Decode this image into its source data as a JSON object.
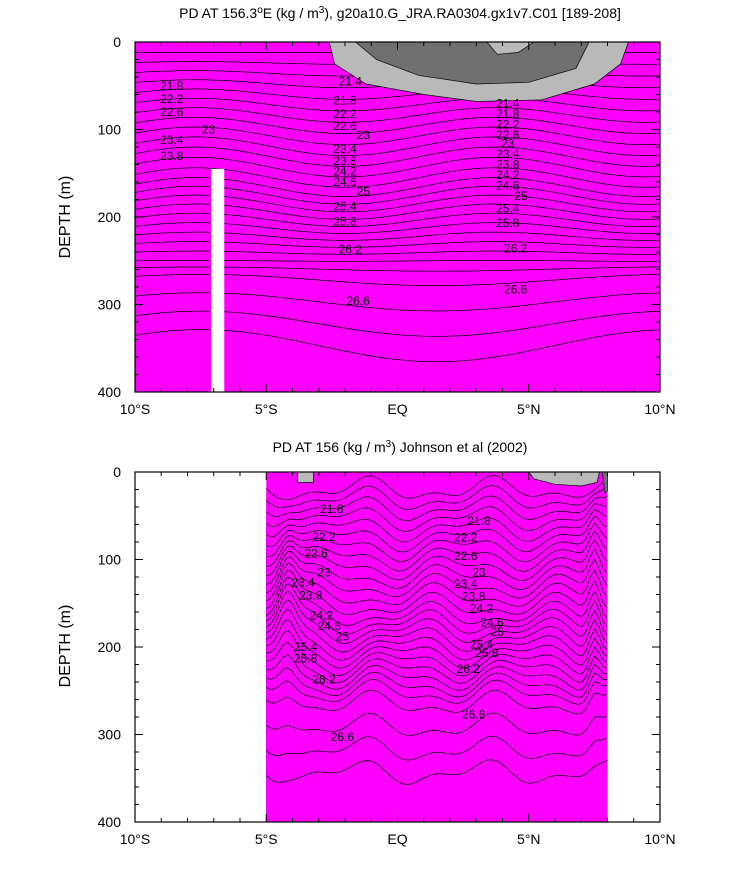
{
  "chart_data": [
    {
      "type": "contour",
      "title": "PD AT 156.3",
      "title_sup": "o",
      "title_rest": "E (kg / m",
      "title_sup2": "3",
      "title_tail": "), g20a10.G_JRA.RA0304.gx1v7.C01 [189-208]",
      "ylabel": "DEPTH (m)",
      "xlabel": "",
      "xlim": [
        -10,
        10
      ],
      "ylim": [
        400,
        0
      ],
      "x_ticks": [
        -10,
        -5,
        0,
        5,
        10
      ],
      "x_tick_labels": [
        "10°S",
        "5°S",
        "EQ",
        "5°N",
        "10°N"
      ],
      "y_ticks": [
        0,
        100,
        200,
        300,
        400
      ],
      "y_tick_labels": [
        "0",
        "100",
        "200",
        "300",
        "400"
      ],
      "levels": [
        21.4,
        21.6,
        21.8,
        22,
        22.2,
        22.4,
        22.6,
        22.8,
        23,
        23.2,
        23.4,
        23.6,
        23.8,
        24,
        24.2,
        24.4,
        24.6,
        24.8,
        25,
        25.2,
        25.4,
        25.6,
        25.8,
        26,
        26.2,
        26.4,
        26.6,
        26.8
      ],
      "contour_labels": [
        {
          "text": "21.8",
          "lat": -8.6,
          "depth": 50
        },
        {
          "text": "22.2",
          "lat": -8.6,
          "depth": 65
        },
        {
          "text": "22.6",
          "lat": -8.6,
          "depth": 80
        },
        {
          "text": "23",
          "lat": -7.2,
          "depth": 100
        },
        {
          "text": "23.4",
          "lat": -8.6,
          "depth": 112
        },
        {
          "text": "23.8",
          "lat": -8.6,
          "depth": 130
        },
        {
          "text": "21.4",
          "lat": -1.8,
          "depth": 45
        },
        {
          "text": "21.8",
          "lat": -2,
          "depth": 67
        },
        {
          "text": "22.2",
          "lat": -2,
          "depth": 82
        },
        {
          "text": "22.6",
          "lat": -2,
          "depth": 96
        },
        {
          "text": "23",
          "lat": -1.3,
          "depth": 106
        },
        {
          "text": "23.4",
          "lat": -2,
          "depth": 122
        },
        {
          "text": "23.8",
          "lat": -2,
          "depth": 136
        },
        {
          "text": "24.2",
          "lat": -2,
          "depth": 148
        },
        {
          "text": "24.6",
          "lat": -2,
          "depth": 160
        },
        {
          "text": "25",
          "lat": -1.3,
          "depth": 171
        },
        {
          "text": "25.4",
          "lat": -2,
          "depth": 188
        },
        {
          "text": "25.8",
          "lat": -2,
          "depth": 205
        },
        {
          "text": "26.2",
          "lat": -1.8,
          "depth": 237
        },
        {
          "text": "26.6",
          "lat": -1.5,
          "depth": 296
        },
        {
          "text": "21.4",
          "lat": 4.2,
          "depth": 70
        },
        {
          "text": "21.8",
          "lat": 4.2,
          "depth": 82
        },
        {
          "text": "22.2",
          "lat": 4.2,
          "depth": 94
        },
        {
          "text": "22.6",
          "lat": 4.2,
          "depth": 106
        },
        {
          "text": "23",
          "lat": 4.2,
          "depth": 116
        },
        {
          "text": "23.4",
          "lat": 4.2,
          "depth": 128
        },
        {
          "text": "23.8",
          "lat": 4.2,
          "depth": 140
        },
        {
          "text": "24.2",
          "lat": 4.2,
          "depth": 152
        },
        {
          "text": "24.6",
          "lat": 4.2,
          "depth": 164
        },
        {
          "text": "25",
          "lat": 4.7,
          "depth": 176
        },
        {
          "text": "25.4",
          "lat": 4.2,
          "depth": 190
        },
        {
          "text": "25.8",
          "lat": 4.2,
          "depth": 207
        },
        {
          "text": "26.2",
          "lat": 4.5,
          "depth": 236
        },
        {
          "text": "26.6",
          "lat": 4.5,
          "depth": 283
        }
      ]
    },
    {
      "type": "contour",
      "title": "PD AT 156 (kg / m",
      "title_sup": "3",
      "title_tail": ") Johnson et al (2002)",
      "ylabel": "DEPTH (m)",
      "xlabel": "",
      "xlim": [
        -10,
        10
      ],
      "ylim": [
        400,
        0
      ],
      "data_lat_range": [
        -5,
        8
      ],
      "x_ticks": [
        -10,
        -5,
        0,
        5,
        10
      ],
      "x_tick_labels": [
        "10°S",
        "5°S",
        "EQ",
        "5°N",
        "10°N"
      ],
      "y_ticks": [
        0,
        100,
        200,
        300,
        400
      ],
      "y_tick_labels": [
        "0",
        "100",
        "200",
        "300",
        "400"
      ],
      "levels": [
        21.4,
        21.6,
        21.8,
        22,
        22.2,
        22.4,
        22.6,
        22.8,
        23,
        23.2,
        23.4,
        23.6,
        23.8,
        24,
        24.2,
        24.4,
        24.6,
        24.8,
        25,
        25.2,
        25.4,
        25.6,
        25.8,
        26,
        26.2,
        26.4,
        26.6,
        26.8
      ],
      "contour_labels": [
        {
          "text": "21.8",
          "lat": -2.5,
          "depth": 42
        },
        {
          "text": "22.2",
          "lat": -2.8,
          "depth": 74
        },
        {
          "text": "22.6",
          "lat": -3.1,
          "depth": 93
        },
        {
          "text": "23",
          "lat": -2.8,
          "depth": 115
        },
        {
          "text": "23.4",
          "lat": -3.6,
          "depth": 126
        },
        {
          "text": "23.8",
          "lat": -3.3,
          "depth": 141
        },
        {
          "text": "24.2",
          "lat": -2.9,
          "depth": 164
        },
        {
          "text": "24.6",
          "lat": -2.6,
          "depth": 176
        },
        {
          "text": "25",
          "lat": -2.1,
          "depth": 188
        },
        {
          "text": "25.4",
          "lat": -3.5,
          "depth": 200
        },
        {
          "text": "25.8",
          "lat": -3.5,
          "depth": 213
        },
        {
          "text": "26.2",
          "lat": -2.8,
          "depth": 237
        },
        {
          "text": "26.6",
          "lat": -2.1,
          "depth": 303
        },
        {
          "text": "21.8",
          "lat": 3.1,
          "depth": 56
        },
        {
          "text": "22.2",
          "lat": 2.6,
          "depth": 75
        },
        {
          "text": "22.6",
          "lat": 2.6,
          "depth": 96
        },
        {
          "text": "23",
          "lat": 3.1,
          "depth": 115
        },
        {
          "text": "23.4",
          "lat": 2.6,
          "depth": 128
        },
        {
          "text": "23.8",
          "lat": 2.9,
          "depth": 142
        },
        {
          "text": "24.2",
          "lat": 3.2,
          "depth": 156
        },
        {
          "text": "24.6",
          "lat": 3.6,
          "depth": 172
        },
        {
          "text": "25",
          "lat": 3.8,
          "depth": 183
        },
        {
          "text": "25.4",
          "lat": 3.2,
          "depth": 197
        },
        {
          "text": "25.8",
          "lat": 3.4,
          "depth": 207
        },
        {
          "text": "26.2",
          "lat": 2.7,
          "depth": 225
        },
        {
          "text": "26.6",
          "lat": 2.9,
          "depth": 277
        }
      ]
    }
  ],
  "palette": {
    "grey_dark": "#707070",
    "grey_light": "#b9b9b9",
    "bands": [
      "#ff00ff",
      "#e400f0",
      "#c000e8",
      "#9a12e8",
      "#6a1ee8",
      "#2c1ee8",
      "#0028f0",
      "#0060f8",
      "#0090ff",
      "#00c0ff",
      "#00e6f0",
      "#00ecb0",
      "#00e050",
      "#34dc00",
      "#8ce600",
      "#d2f000",
      "#ffff00",
      "#ffe400",
      "#ffc800",
      "#ffb000",
      "#ff9c00",
      "#ff8800",
      "#ff7400",
      "#ff5800",
      "#ff3c00",
      "#f81800",
      "#e00000",
      "#c40000",
      "#aa0000"
    ]
  }
}
